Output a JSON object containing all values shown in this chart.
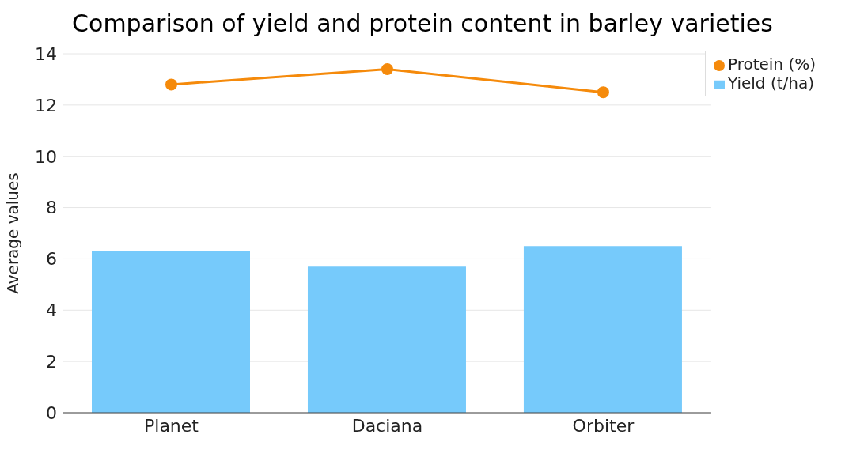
{
  "chart_data": {
    "type": "bar",
    "title": "Comparison of yield and protein content in barley varieties",
    "ylabel": "Average values",
    "categories": [
      "Planet",
      "Daciana",
      "Orbiter"
    ],
    "series": [
      {
        "name": "Yield (t/ha)",
        "color": "#76cafb",
        "values": [
          6.3,
          5.7,
          6.5
        ]
      },
      {
        "name": "Protein (%)",
        "type": "line",
        "color": "#f58a0b",
        "values": [
          12.8,
          13.4,
          12.5
        ]
      }
    ],
    "ylim": [
      0,
      14
    ],
    "yticks": [
      0,
      2,
      4,
      6,
      8,
      10,
      12,
      14
    ],
    "grid": "y",
    "legend": "top right",
    "marker": "circle"
  }
}
